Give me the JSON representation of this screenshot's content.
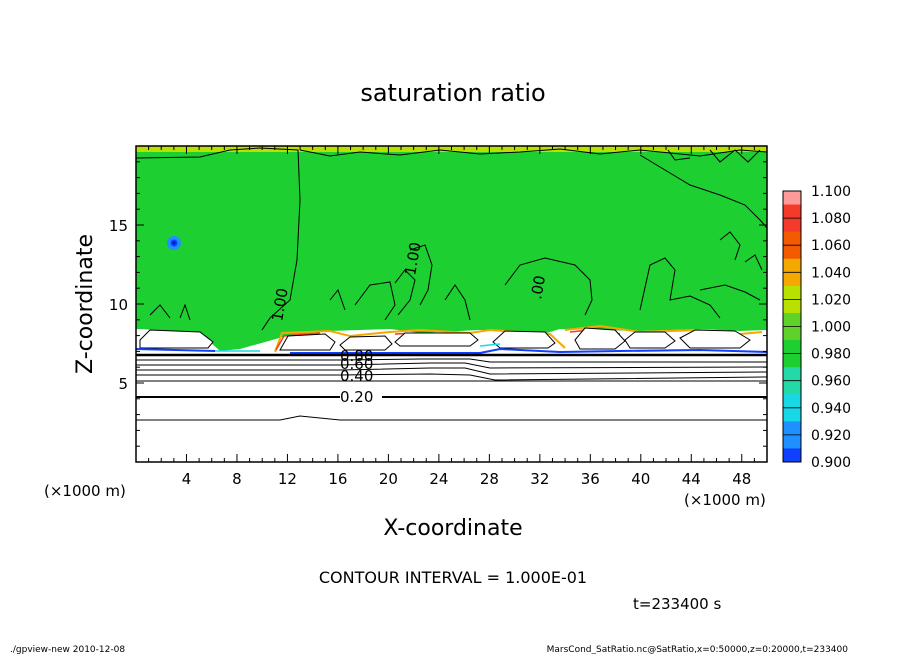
{
  "chart_data": {
    "type": "heatmap",
    "title": "saturation ratio",
    "xlabel": "X-coordinate",
    "ylabel": "Z-coordinate",
    "x_unit": "(×1000 m)",
    "x_unit_right": "(×1000 m)",
    "y_unit": "(×1000 m)",
    "xlim": [
      0,
      50
    ],
    "ylim": [
      0,
      20
    ],
    "xticks": [
      4,
      8,
      12,
      16,
      20,
      24,
      28,
      32,
      36,
      40,
      44,
      48
    ],
    "yticks": [
      5,
      10,
      15
    ],
    "colorbar": {
      "levels": [
        "1.100",
        "1.080",
        "1.060",
        "1.040",
        "1.020",
        "1.000",
        "0.980",
        "0.960",
        "0.940",
        "0.920",
        "0.900"
      ],
      "colors": [
        "#ff9a9a",
        "#f43a2a",
        "#f45a00",
        "#f5a800",
        "#b8e000",
        "#5fd22a",
        "#1ecf32",
        "#24d9a8",
        "#18d8e6",
        "#1e90ff",
        "#1040ff",
        "#0a10c0",
        "#6a00a8"
      ]
    },
    "contour_labels": [
      "1.00",
      "1.00",
      ".00",
      "1.00",
      "0.80",
      "0.60",
      "0.40",
      "0.20"
    ],
    "contour_interval_text": "CONTOUR INTERVAL = 1.000E-01",
    "time_text": "t=233400 s"
  },
  "footer": {
    "left": "./gpview-new  2010-12-08",
    "right": "MarsCond_SatRatio.nc@SatRatio,x=0:50000,z=0:20000,t=233400"
  }
}
